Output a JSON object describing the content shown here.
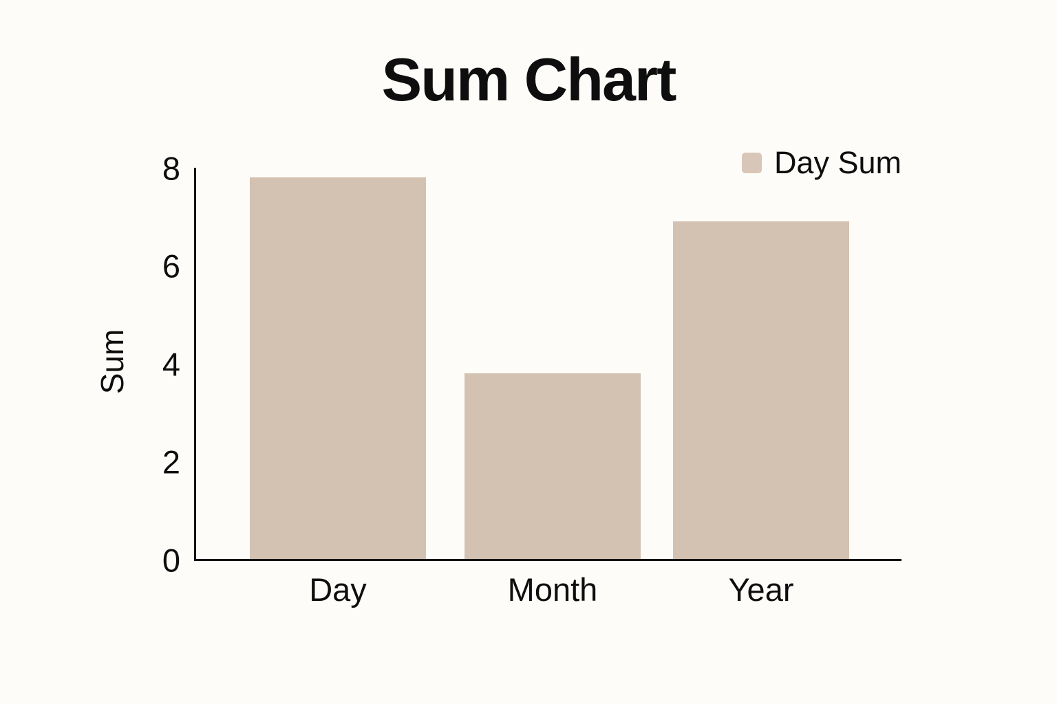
{
  "chart_data": {
    "type": "bar",
    "title": "Sum Chart",
    "categories": [
      "Day",
      "Month",
      "Year"
    ],
    "series": [
      {
        "name": "Day Sum",
        "values": [
          7.8,
          3.8,
          6.9
        ]
      }
    ],
    "xlabel": "",
    "ylabel": "Sum",
    "ylim": [
      0,
      8
    ],
    "yticks": [
      0,
      2,
      4,
      6,
      8
    ],
    "grid": false,
    "legend_position": "top-right",
    "colors": {
      "bar": "#d3c1b2",
      "legend_swatch": "#d8c7b8",
      "axis": "#141414",
      "text": "#0e0e0e",
      "background": "#fdfcf9"
    }
  }
}
